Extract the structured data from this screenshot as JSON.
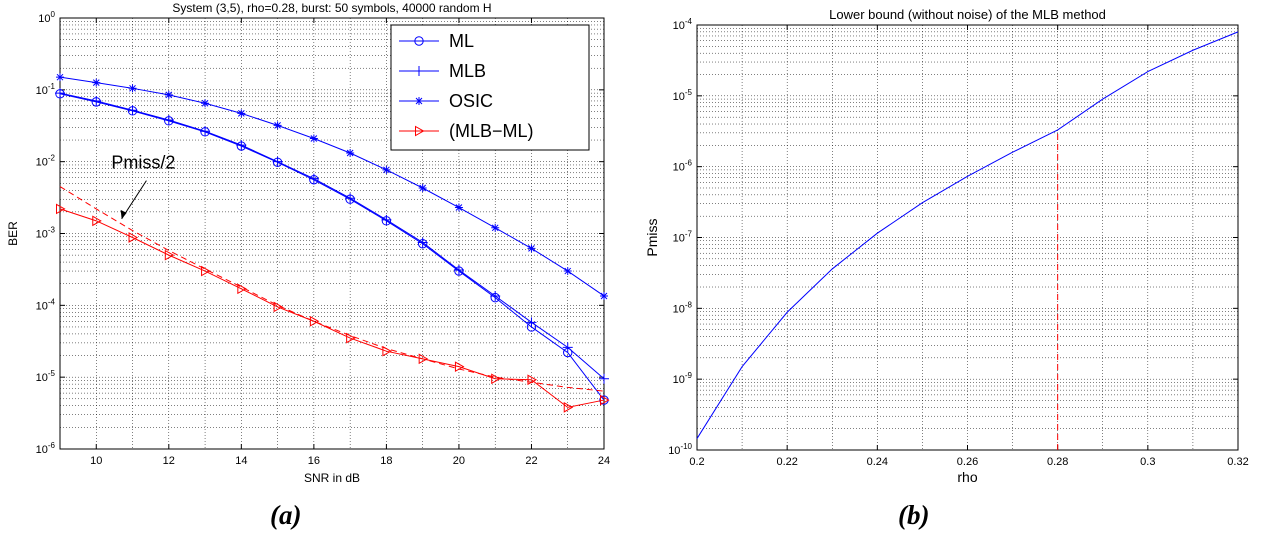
{
  "panels": {
    "a": {
      "caption": "(a)",
      "chart_data": {
        "type": "line",
        "title": "System (3,5), rho=0.28, burst: 50 symbols, 40000 random H",
        "xlabel": "SNR in dB",
        "ylabel": "BER",
        "xlim": [
          9,
          24
        ],
        "ylim": [
          1e-06,
          1
        ],
        "yscale": "log",
        "xticks": [
          10,
          12,
          14,
          16,
          18,
          20,
          22,
          24
        ],
        "grid": true,
        "legend_position": "top-right",
        "series": [
          {
            "name": "ML",
            "color": "#0000ff",
            "marker": "circle",
            "x": [
              9,
              10,
              11,
              12,
              13,
              14,
              15,
              16,
              17,
              18,
              19,
              20,
              21,
              22,
              23,
              24
            ],
            "y": [
              0.088,
              0.068,
              0.051,
              0.037,
              0.026,
              0.0165,
              0.0098,
              0.0056,
              0.003,
              0.0015,
              0.00072,
              0.0003,
              0.000128,
              5e-05,
              2.2e-05,
              4.8e-06
            ]
          },
          {
            "name": "MLB",
            "color": "#0000ff",
            "marker": "plus",
            "x": [
              9,
              10,
              11,
              12,
              13,
              14,
              15,
              16,
              17,
              18,
              19,
              20,
              21,
              22,
              23,
              24
            ],
            "y": [
              0.09,
              0.07,
              0.052,
              0.038,
              0.0265,
              0.017,
              0.01,
              0.0058,
              0.0031,
              0.00155,
              0.00075,
              0.00031,
              0.000135,
              5.8e-05,
              2.6e-05,
              9.5e-06
            ]
          },
          {
            "name": "OSIC",
            "color": "#0000ff",
            "marker": "star",
            "x": [
              9,
              10,
              11,
              12,
              13,
              14,
              15,
              16,
              17,
              18,
              19,
              20,
              21,
              22,
              23,
              24
            ],
            "y": [
              0.15,
              0.126,
              0.105,
              0.085,
              0.065,
              0.047,
              0.032,
              0.021,
              0.0132,
              0.0077,
              0.0043,
              0.0023,
              0.0012,
              0.00062,
              0.0003,
              0.000135
            ]
          },
          {
            "name": "(MLB−ML)",
            "color": "#ff0000",
            "marker": "triangle-right",
            "x": [
              9,
              10,
              11,
              12,
              13,
              14,
              15,
              16,
              17,
              18,
              19,
              20,
              21,
              22,
              23,
              24
            ],
            "y": [
              0.0022,
              0.0015,
              0.00088,
              0.0005,
              0.0003,
              0.00017,
              9.5e-05,
              6e-05,
              3.5e-05,
              2.3e-05,
              1.8e-05,
              1.4e-05,
              9.5e-06,
              9.2e-06,
              3.8e-06,
              4.8e-06
            ]
          },
          {
            "name": "",
            "color": "#ff0000",
            "dashed": true,
            "marker": "none",
            "x": [
              9,
              10,
              11,
              12,
              13,
              14,
              15,
              16,
              17,
              18,
              19,
              20,
              21,
              22,
              23,
              24
            ],
            "y": [
              0.0045,
              0.0022,
              0.0011,
              0.00058,
              0.00032,
              0.00018,
              0.0001,
              6e-05,
              3.8e-05,
              2.5e-05,
              1.8e-05,
              1.3e-05,
              1e-05,
              8.5e-06,
              7.2e-06,
              6.4e-06
            ]
          }
        ],
        "annotations": [
          {
            "text": "Pmiss/2",
            "x": 11.3,
            "y": 0.008,
            "arrow_to": [
              10.7,
              0.0016
            ]
          }
        ]
      }
    },
    "b": {
      "caption": "(b)",
      "chart_data": {
        "type": "line",
        "title": "Lower bound (without noise)  of the MLB method",
        "xlabel": "rho",
        "ylabel": "Pmiss",
        "xlim": [
          0.2,
          0.32
        ],
        "ylim": [
          1e-10,
          0.0001
        ],
        "yscale": "log",
        "xticks": [
          0.2,
          0.22,
          0.24,
          0.26,
          0.28,
          0.3,
          0.32
        ],
        "grid": true,
        "series": [
          {
            "name": "",
            "color": "#0000ff",
            "marker": "none",
            "x": [
              0.2,
              0.21,
              0.22,
              0.23,
              0.24,
              0.25,
              0.26,
              0.27,
              0.28,
              0.29,
              0.3,
              0.31,
              0.32
            ],
            "y": [
              1.45e-10,
              1.5e-09,
              8.8e-09,
              3.6e-08,
              1.15e-07,
              3.1e-07,
              7.3e-07,
              1.6e-06,
              3.3e-06,
              9e-06,
              2.2e-05,
              4.4e-05,
              8e-05
            ]
          }
        ],
        "reference_line": {
          "x": 0.28,
          "color": "#ff0000",
          "dashed": true
        }
      }
    }
  }
}
